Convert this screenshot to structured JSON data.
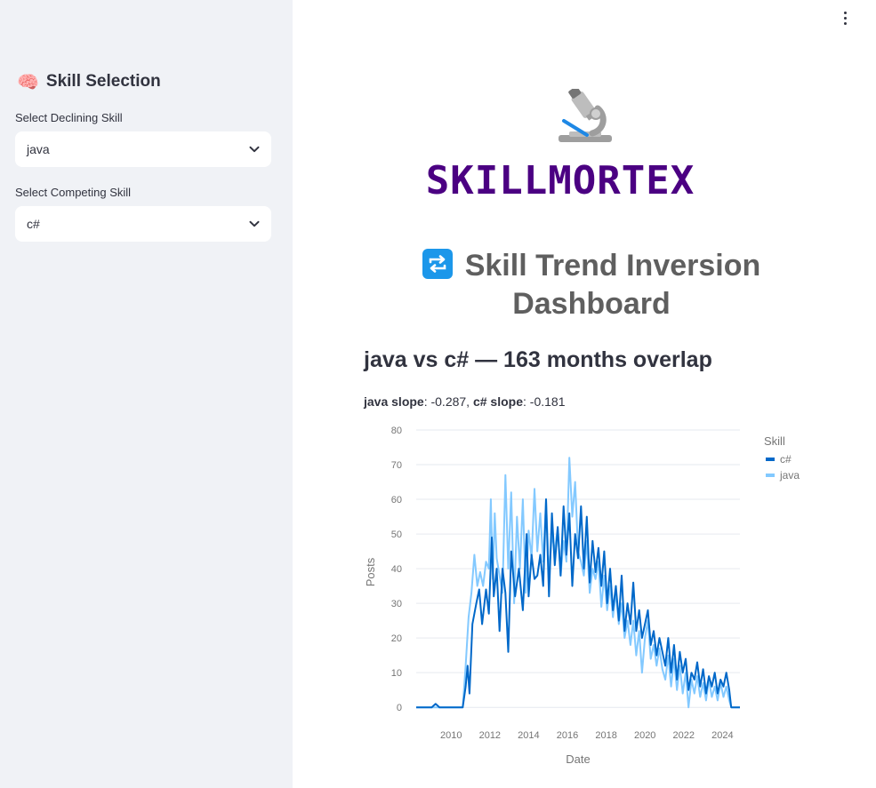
{
  "sidebar": {
    "header_emoji": "🧠",
    "header_title": "Skill Selection",
    "declining": {
      "label": "Select Declining Skill",
      "value": "java"
    },
    "competing": {
      "label": "Select Competing Skill",
      "value": "c#"
    }
  },
  "main": {
    "logo_icon": "microscope-icon",
    "brand": "SKILLMORTEX",
    "title_icon": "repeat-icon",
    "title": "Skill Trend Inversion Dashboard",
    "section_title": "java vs c# — 163 months overlap",
    "slopes": {
      "java_label": "java slope",
      "java_value": ": -0.287, ",
      "csharp_label": "c# slope",
      "csharp_value": ": -0.181"
    }
  },
  "colors": {
    "brand": "#4b0082",
    "csharp": "#0068c9",
    "java": "#83c9ff",
    "sidebar_bg": "#f0f2f6"
  },
  "chart_data": {
    "type": "line",
    "xlabel": "Date",
    "ylabel": "Posts",
    "xlim": [
      2008.2,
      2024.9
    ],
    "ylim": [
      -2,
      80
    ],
    "x_ticks": [
      "2010",
      "2012",
      "2014",
      "2016",
      "2018",
      "2020",
      "2022",
      "2024"
    ],
    "y_ticks": [
      "0",
      "10",
      "20",
      "30",
      "40",
      "50",
      "60",
      "70",
      "80"
    ],
    "grid": true,
    "legend": {
      "title": "Skill",
      "placement": "top-right"
    },
    "series": [
      {
        "name": "c#",
        "color": "#0068c9",
        "points": [
          [
            2008.2,
            0
          ],
          [
            2009.0,
            0
          ],
          [
            2009.2,
            1
          ],
          [
            2009.4,
            0
          ],
          [
            2010.0,
            0
          ],
          [
            2010.6,
            0
          ],
          [
            2010.75,
            6
          ],
          [
            2010.85,
            12
          ],
          [
            2010.95,
            4
          ],
          [
            2011.1,
            24
          ],
          [
            2011.3,
            30
          ],
          [
            2011.45,
            34
          ],
          [
            2011.6,
            24
          ],
          [
            2011.8,
            34
          ],
          [
            2011.95,
            27
          ],
          [
            2012.1,
            49
          ],
          [
            2012.2,
            32
          ],
          [
            2012.35,
            40
          ],
          [
            2012.5,
            22
          ],
          [
            2012.65,
            40
          ],
          [
            2012.8,
            33
          ],
          [
            2012.95,
            16
          ],
          [
            2013.1,
            45
          ],
          [
            2013.3,
            32
          ],
          [
            2013.5,
            40
          ],
          [
            2013.7,
            28
          ],
          [
            2013.9,
            50
          ],
          [
            2014.0,
            32
          ],
          [
            2014.15,
            44
          ],
          [
            2014.3,
            37
          ],
          [
            2014.45,
            38
          ],
          [
            2014.6,
            44
          ],
          [
            2014.75,
            35
          ],
          [
            2014.9,
            60
          ],
          [
            2015.05,
            32
          ],
          [
            2015.2,
            56
          ],
          [
            2015.35,
            41
          ],
          [
            2015.5,
            52
          ],
          [
            2015.65,
            38
          ],
          [
            2015.8,
            58
          ],
          [
            2015.95,
            44
          ],
          [
            2016.1,
            56
          ],
          [
            2016.25,
            35
          ],
          [
            2016.4,
            50
          ],
          [
            2016.55,
            43
          ],
          [
            2016.7,
            58
          ],
          [
            2016.85,
            40
          ],
          [
            2017.0,
            55
          ],
          [
            2017.15,
            36
          ],
          [
            2017.3,
            48
          ],
          [
            2017.45,
            39
          ],
          [
            2017.6,
            46
          ],
          [
            2017.75,
            35
          ],
          [
            2017.9,
            45
          ],
          [
            2018.05,
            30
          ],
          [
            2018.2,
            40
          ],
          [
            2018.35,
            28
          ],
          [
            2018.5,
            35
          ],
          [
            2018.65,
            25
          ],
          [
            2018.8,
            38
          ],
          [
            2018.95,
            22
          ],
          [
            2019.1,
            30
          ],
          [
            2019.25,
            24
          ],
          [
            2019.4,
            36
          ],
          [
            2019.55,
            22
          ],
          [
            2019.7,
            28
          ],
          [
            2019.85,
            20
          ],
          [
            2020.0,
            24
          ],
          [
            2020.15,
            28
          ],
          [
            2020.3,
            18
          ],
          [
            2020.45,
            22
          ],
          [
            2020.6,
            15
          ],
          [
            2020.75,
            20
          ],
          [
            2020.9,
            16
          ],
          [
            2021.05,
            12
          ],
          [
            2021.2,
            20
          ],
          [
            2021.35,
            10
          ],
          [
            2021.5,
            18
          ],
          [
            2021.65,
            8
          ],
          [
            2021.8,
            16
          ],
          [
            2021.95,
            10
          ],
          [
            2022.1,
            14
          ],
          [
            2022.25,
            5
          ],
          [
            2022.4,
            10
          ],
          [
            2022.55,
            8
          ],
          [
            2022.7,
            13
          ],
          [
            2022.85,
            6
          ],
          [
            2023.0,
            11
          ],
          [
            2023.15,
            4
          ],
          [
            2023.3,
            9
          ],
          [
            2023.45,
            6
          ],
          [
            2023.6,
            10
          ],
          [
            2023.75,
            4
          ],
          [
            2023.9,
            8
          ],
          [
            2024.05,
            6
          ],
          [
            2024.2,
            10
          ],
          [
            2024.35,
            5
          ],
          [
            2024.45,
            0
          ],
          [
            2024.9,
            0
          ]
        ]
      },
      {
        "name": "java",
        "color": "#83c9ff",
        "points": [
          [
            2008.2,
            0
          ],
          [
            2010.6,
            0
          ],
          [
            2010.75,
            12
          ],
          [
            2010.9,
            26
          ],
          [
            2011.05,
            33
          ],
          [
            2011.2,
            44
          ],
          [
            2011.35,
            35
          ],
          [
            2011.5,
            39
          ],
          [
            2011.65,
            35
          ],
          [
            2011.8,
            42
          ],
          [
            2011.95,
            40
          ],
          [
            2012.05,
            60
          ],
          [
            2012.15,
            37
          ],
          [
            2012.25,
            56
          ],
          [
            2012.35,
            43
          ],
          [
            2012.5,
            38
          ],
          [
            2012.65,
            33
          ],
          [
            2012.8,
            67
          ],
          [
            2012.95,
            40
          ],
          [
            2013.1,
            62
          ],
          [
            2013.25,
            30
          ],
          [
            2013.4,
            55
          ],
          [
            2013.55,
            40
          ],
          [
            2013.7,
            60
          ],
          [
            2013.85,
            33
          ],
          [
            2014.0,
            51
          ],
          [
            2014.15,
            43
          ],
          [
            2014.3,
            63
          ],
          [
            2014.45,
            45
          ],
          [
            2014.6,
            56
          ],
          [
            2014.75,
            42
          ],
          [
            2014.9,
            60
          ],
          [
            2015.05,
            38
          ],
          [
            2015.2,
            50
          ],
          [
            2015.35,
            45
          ],
          [
            2015.5,
            52
          ],
          [
            2015.65,
            38
          ],
          [
            2015.8,
            48
          ],
          [
            2015.95,
            42
          ],
          [
            2016.1,
            72
          ],
          [
            2016.25,
            55
          ],
          [
            2016.4,
            65
          ],
          [
            2016.55,
            45
          ],
          [
            2016.7,
            42
          ],
          [
            2016.85,
            38
          ],
          [
            2017.0,
            48
          ],
          [
            2017.15,
            33
          ],
          [
            2017.3,
            40
          ],
          [
            2017.45,
            37
          ],
          [
            2017.6,
            42
          ],
          [
            2017.75,
            29
          ],
          [
            2017.9,
            38
          ],
          [
            2018.05,
            28
          ],
          [
            2018.2,
            35
          ],
          [
            2018.35,
            26
          ],
          [
            2018.5,
            33
          ],
          [
            2018.65,
            24
          ],
          [
            2018.8,
            30
          ],
          [
            2018.95,
            20
          ],
          [
            2019.1,
            25
          ],
          [
            2019.25,
            18
          ],
          [
            2019.4,
            25
          ],
          [
            2019.55,
            15
          ],
          [
            2019.7,
            22
          ],
          [
            2019.85,
            10
          ],
          [
            2020.0,
            20
          ],
          [
            2020.15,
            25
          ],
          [
            2020.3,
            14
          ],
          [
            2020.45,
            18
          ],
          [
            2020.6,
            12
          ],
          [
            2020.75,
            17
          ],
          [
            2020.9,
            11
          ],
          [
            2021.05,
            8
          ],
          [
            2021.2,
            15
          ],
          [
            2021.35,
            6
          ],
          [
            2021.5,
            14
          ],
          [
            2021.65,
            5
          ],
          [
            2021.8,
            12
          ],
          [
            2021.95,
            4
          ],
          [
            2022.1,
            10
          ],
          [
            2022.25,
            0
          ],
          [
            2022.4,
            8
          ],
          [
            2022.55,
            4
          ],
          [
            2022.7,
            9
          ],
          [
            2022.85,
            3
          ],
          [
            2023.0,
            7
          ],
          [
            2023.15,
            2
          ],
          [
            2023.3,
            8
          ],
          [
            2023.45,
            3
          ],
          [
            2023.6,
            6
          ],
          [
            2023.75,
            2
          ],
          [
            2023.9,
            7
          ],
          [
            2024.05,
            3
          ],
          [
            2024.2,
            6
          ],
          [
            2024.35,
            2
          ],
          [
            2024.45,
            0
          ],
          [
            2024.9,
            0
          ]
        ]
      }
    ]
  }
}
